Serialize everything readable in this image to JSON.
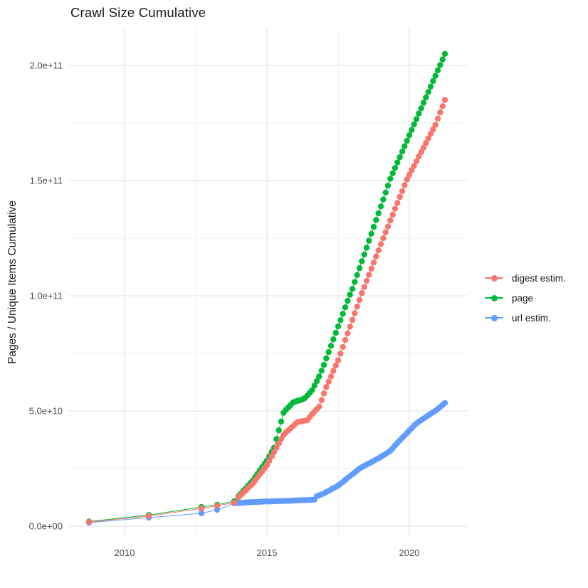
{
  "chart_data": {
    "type": "line",
    "marker": "circle",
    "title": "Crawl Size Cumulative",
    "xlabel": "",
    "ylabel": "Pages / Unique Items Cumulative",
    "grid": "on",
    "xlim": [
      2008.1,
      2022.0
    ],
    "ylim": [
      0,
      216000000000
    ],
    "value_scale": 1000000000,
    "value_unit": "pages / unique items (values stored in billions)",
    "x_ticks": {
      "major": [
        2010,
        2015,
        2020
      ],
      "minor": [
        2012.5,
        2017.5
      ],
      "labels": [
        "2010",
        "2015",
        "2020"
      ]
    },
    "y_ticks": {
      "major_values_billions": [
        0,
        50,
        100,
        150,
        200
      ],
      "minor_values_billions": [
        25,
        75,
        125,
        175
      ],
      "labels": [
        "0.0e+00",
        "5.0e+10",
        "1.0e+11",
        "1.5e+11",
        "2.0e+11"
      ]
    },
    "legend": {
      "position": "right",
      "items": [
        {
          "label": "digest estim.",
          "color": "#F8766D"
        },
        {
          "label": "page",
          "color": "#00BA38"
        },
        {
          "label": "url estim.",
          "color": "#619CFF"
        }
      ]
    },
    "series": [
      {
        "name": "page",
        "color": "#00BA38",
        "points": [
          [
            2008.75,
            2.0
          ],
          [
            2010.85,
            4.8
          ],
          [
            2012.7,
            8.3
          ],
          [
            2013.25,
            9.3
          ],
          [
            2013.85,
            10.8
          ],
          [
            2014.0,
            13.0
          ],
          [
            2014.083,
            14.1
          ],
          [
            2014.167,
            15.3
          ],
          [
            2014.25,
            16.4
          ],
          [
            2014.333,
            17.5
          ],
          [
            2014.417,
            18.7
          ],
          [
            2014.5,
            19.8
          ],
          [
            2014.583,
            21.3
          ],
          [
            2014.667,
            22.7
          ],
          [
            2014.75,
            24.2
          ],
          [
            2014.833,
            25.6
          ],
          [
            2014.917,
            27.1
          ],
          [
            2015.0,
            28.5
          ],
          [
            2015.083,
            30.3
          ],
          [
            2015.167,
            32.2
          ],
          [
            2015.25,
            34.0
          ],
          [
            2015.333,
            37.8
          ],
          [
            2015.417,
            41.6
          ],
          [
            2015.5,
            45.4
          ],
          [
            2015.583,
            49.2
          ],
          [
            2015.667,
            50.5
          ],
          [
            2015.75,
            51.5
          ],
          [
            2015.833,
            52.6
          ],
          [
            2015.917,
            53.7
          ],
          [
            2016.0,
            54.1
          ],
          [
            2016.083,
            54.4
          ],
          [
            2016.167,
            54.7
          ],
          [
            2016.25,
            55.1
          ],
          [
            2016.333,
            55.6
          ],
          [
            2016.417,
            56.7
          ],
          [
            2016.5,
            57.8
          ],
          [
            2016.583,
            59.0
          ],
          [
            2016.667,
            61.0
          ],
          [
            2016.75,
            63.0
          ],
          [
            2016.833,
            65.0
          ],
          [
            2016.917,
            67.5
          ],
          [
            2017.0,
            70.0
          ],
          [
            2017.083,
            72.8
          ],
          [
            2017.167,
            75.6
          ],
          [
            2017.25,
            78.3
          ],
          [
            2017.333,
            81.1
          ],
          [
            2017.417,
            83.9
          ],
          [
            2017.5,
            86.7
          ],
          [
            2017.583,
            89.4
          ],
          [
            2017.667,
            92.2
          ],
          [
            2017.75,
            95.0
          ],
          [
            2017.833,
            97.8
          ],
          [
            2017.917,
            100.5
          ],
          [
            2018.0,
            103.0
          ],
          [
            2018.083,
            106.0
          ],
          [
            2018.167,
            109.0
          ],
          [
            2018.25,
            112.0
          ],
          [
            2018.333,
            115.0
          ],
          [
            2018.417,
            117.9
          ],
          [
            2018.5,
            120.9
          ],
          [
            2018.583,
            123.9
          ],
          [
            2018.667,
            126.9
          ],
          [
            2018.75,
            129.9
          ],
          [
            2018.833,
            132.9
          ],
          [
            2018.917,
            135.8
          ],
          [
            2019.0,
            138.8
          ],
          [
            2019.083,
            141.8
          ],
          [
            2019.167,
            144.8
          ],
          [
            2019.25,
            147.8
          ],
          [
            2019.333,
            150.8
          ],
          [
            2019.417,
            153.2
          ],
          [
            2019.5,
            155.5
          ],
          [
            2019.583,
            157.9
          ],
          [
            2019.667,
            160.2
          ],
          [
            2019.75,
            162.6
          ],
          [
            2019.833,
            164.9
          ],
          [
            2019.917,
            167.3
          ],
          [
            2020.0,
            169.7
          ],
          [
            2020.083,
            172.0
          ],
          [
            2020.167,
            174.4
          ],
          [
            2020.25,
            176.7
          ],
          [
            2020.333,
            179.1
          ],
          [
            2020.417,
            181.4
          ],
          [
            2020.5,
            183.8
          ],
          [
            2020.583,
            186.1
          ],
          [
            2020.667,
            188.5
          ],
          [
            2020.75,
            190.8
          ],
          [
            2020.833,
            193.2
          ],
          [
            2020.917,
            195.5
          ],
          [
            2021.0,
            197.9
          ],
          [
            2021.083,
            200.2
          ],
          [
            2021.167,
            202.6
          ],
          [
            2021.25,
            205.0
          ]
        ]
      },
      {
        "name": "url estim.",
        "color": "#619CFF",
        "points": [
          [
            2008.75,
            1.5
          ],
          [
            2010.85,
            3.7
          ],
          [
            2012.7,
            5.6
          ],
          [
            2013.25,
            7.1
          ],
          [
            2013.85,
            9.9
          ],
          [
            2014.0,
            10.0
          ],
          [
            2014.083,
            10.1
          ],
          [
            2014.167,
            10.2
          ],
          [
            2014.25,
            10.3
          ],
          [
            2014.333,
            10.3
          ],
          [
            2014.417,
            10.4
          ],
          [
            2014.5,
            10.4
          ],
          [
            2014.583,
            10.5
          ],
          [
            2014.667,
            10.5
          ],
          [
            2014.75,
            10.6
          ],
          [
            2014.833,
            10.6
          ],
          [
            2014.917,
            10.7
          ],
          [
            2015.0,
            10.7
          ],
          [
            2015.083,
            10.7
          ],
          [
            2015.167,
            10.8
          ],
          [
            2015.25,
            10.8
          ],
          [
            2015.333,
            10.8
          ],
          [
            2015.417,
            10.9
          ],
          [
            2015.5,
            10.9
          ],
          [
            2015.583,
            10.9
          ],
          [
            2015.667,
            11.0
          ],
          [
            2015.75,
            11.0
          ],
          [
            2015.833,
            11.0
          ],
          [
            2015.917,
            11.1
          ],
          [
            2016.0,
            11.1
          ],
          [
            2016.083,
            11.2
          ],
          [
            2016.167,
            11.2
          ],
          [
            2016.25,
            11.3
          ],
          [
            2016.333,
            11.3
          ],
          [
            2016.417,
            11.3
          ],
          [
            2016.5,
            11.4
          ],
          [
            2016.583,
            11.4
          ],
          [
            2016.667,
            11.5
          ],
          [
            2016.75,
            13.0
          ],
          [
            2016.833,
            13.4
          ],
          [
            2016.917,
            13.8
          ],
          [
            2017.0,
            14.2
          ],
          [
            2017.083,
            14.8
          ],
          [
            2017.167,
            15.3
          ],
          [
            2017.25,
            15.9
          ],
          [
            2017.333,
            16.5
          ],
          [
            2017.417,
            17.0
          ],
          [
            2017.5,
            17.6
          ],
          [
            2017.583,
            18.4
          ],
          [
            2017.667,
            19.2
          ],
          [
            2017.75,
            20.1
          ],
          [
            2017.833,
            20.9
          ],
          [
            2017.917,
            21.7
          ],
          [
            2018.0,
            22.5
          ],
          [
            2018.083,
            23.3
          ],
          [
            2018.167,
            24.2
          ],
          [
            2018.25,
            25.0
          ],
          [
            2018.333,
            25.6
          ],
          [
            2018.417,
            26.1
          ],
          [
            2018.5,
            26.7
          ],
          [
            2018.583,
            27.2
          ],
          [
            2018.667,
            27.8
          ],
          [
            2018.75,
            28.3
          ],
          [
            2018.833,
            28.9
          ],
          [
            2018.917,
            29.4
          ],
          [
            2019.0,
            30.1
          ],
          [
            2019.083,
            30.7
          ],
          [
            2019.167,
            31.4
          ],
          [
            2019.25,
            32.0
          ],
          [
            2019.333,
            32.7
          ],
          [
            2019.417,
            33.8
          ],
          [
            2019.5,
            35.0
          ],
          [
            2019.583,
            36.1
          ],
          [
            2019.667,
            37.2
          ],
          [
            2019.75,
            38.3
          ],
          [
            2019.833,
            39.3
          ],
          [
            2019.917,
            40.4
          ],
          [
            2020.0,
            41.5
          ],
          [
            2020.083,
            42.5
          ],
          [
            2020.167,
            43.6
          ],
          [
            2020.25,
            44.6
          ],
          [
            2020.333,
            45.3
          ],
          [
            2020.417,
            46.0
          ],
          [
            2020.5,
            46.7
          ],
          [
            2020.583,
            47.4
          ],
          [
            2020.667,
            48.1
          ],
          [
            2020.75,
            48.7
          ],
          [
            2020.833,
            49.4
          ],
          [
            2020.917,
            50.1
          ],
          [
            2021.0,
            50.9
          ],
          [
            2021.083,
            51.7
          ],
          [
            2021.167,
            52.6
          ],
          [
            2021.25,
            53.5
          ]
        ]
      },
      {
        "name": "digest estim.",
        "color": "#F8766D",
        "points": [
          [
            2008.75,
            1.8
          ],
          [
            2010.85,
            4.4
          ],
          [
            2012.7,
            7.7
          ],
          [
            2013.25,
            8.9
          ],
          [
            2013.85,
            10.2
          ],
          [
            2014.0,
            12.5
          ],
          [
            2014.083,
            13.5
          ],
          [
            2014.167,
            14.5
          ],
          [
            2014.25,
            15.5
          ],
          [
            2014.333,
            16.5
          ],
          [
            2014.417,
            17.5
          ],
          [
            2014.5,
            18.5
          ],
          [
            2014.583,
            19.8
          ],
          [
            2014.667,
            21.2
          ],
          [
            2014.75,
            22.5
          ],
          [
            2014.833,
            23.8
          ],
          [
            2014.917,
            25.2
          ],
          [
            2015.0,
            26.5
          ],
          [
            2015.083,
            28.4
          ],
          [
            2015.167,
            30.3
          ],
          [
            2015.25,
            32.1
          ],
          [
            2015.333,
            34.0
          ],
          [
            2015.417,
            35.9
          ],
          [
            2015.5,
            37.8
          ],
          [
            2015.583,
            39.6
          ],
          [
            2015.667,
            40.7
          ],
          [
            2015.75,
            41.6
          ],
          [
            2015.833,
            42.5
          ],
          [
            2015.917,
            43.4
          ],
          [
            2016.0,
            44.4
          ],
          [
            2016.083,
            45.2
          ],
          [
            2016.167,
            45.4
          ],
          [
            2016.25,
            45.6
          ],
          [
            2016.333,
            45.8
          ],
          [
            2016.417,
            46.0
          ],
          [
            2016.5,
            47.3
          ],
          [
            2016.583,
            48.6
          ],
          [
            2016.667,
            49.7
          ],
          [
            2016.75,
            50.8
          ],
          [
            2016.833,
            51.9
          ],
          [
            2016.917,
            54.7
          ],
          [
            2017.0,
            57.6
          ],
          [
            2017.083,
            60.4
          ],
          [
            2017.167,
            62.7
          ],
          [
            2017.25,
            65.0
          ],
          [
            2017.333,
            67.4
          ],
          [
            2017.417,
            69.7
          ],
          [
            2017.5,
            72.0
          ],
          [
            2017.583,
            74.9
          ],
          [
            2017.667,
            77.8
          ],
          [
            2017.75,
            80.8
          ],
          [
            2017.833,
            83.7
          ],
          [
            2017.917,
            86.6
          ],
          [
            2018.0,
            89.5
          ],
          [
            2018.083,
            92.4
          ],
          [
            2018.167,
            95.3
          ],
          [
            2018.25,
            98.2
          ],
          [
            2018.333,
            101.2
          ],
          [
            2018.417,
            103.8
          ],
          [
            2018.5,
            106.5
          ],
          [
            2018.583,
            109.1
          ],
          [
            2018.667,
            111.8
          ],
          [
            2018.75,
            114.4
          ],
          [
            2018.833,
            117.1
          ],
          [
            2018.917,
            119.7
          ],
          [
            2019.0,
            122.4
          ],
          [
            2019.083,
            125.0
          ],
          [
            2019.167,
            127.6
          ],
          [
            2019.25,
            130.1
          ],
          [
            2019.333,
            132.7
          ],
          [
            2019.417,
            135.2
          ],
          [
            2019.5,
            137.8
          ],
          [
            2019.583,
            140.3
          ],
          [
            2019.667,
            142.9
          ],
          [
            2019.75,
            145.4
          ],
          [
            2019.833,
            148.0
          ],
          [
            2019.917,
            150.5
          ],
          [
            2020.0,
            152.5
          ],
          [
            2020.083,
            154.5
          ],
          [
            2020.167,
            156.4
          ],
          [
            2020.25,
            158.4
          ],
          [
            2020.333,
            160.4
          ],
          [
            2020.417,
            162.4
          ],
          [
            2020.5,
            164.3
          ],
          [
            2020.583,
            166.3
          ],
          [
            2020.667,
            168.3
          ],
          [
            2020.75,
            170.3
          ],
          [
            2020.833,
            172.2
          ],
          [
            2020.917,
            174.2
          ],
          [
            2021.0,
            176.9
          ],
          [
            2021.083,
            179.6
          ],
          [
            2021.167,
            182.3
          ],
          [
            2021.25,
            185.0
          ]
        ]
      }
    ]
  }
}
